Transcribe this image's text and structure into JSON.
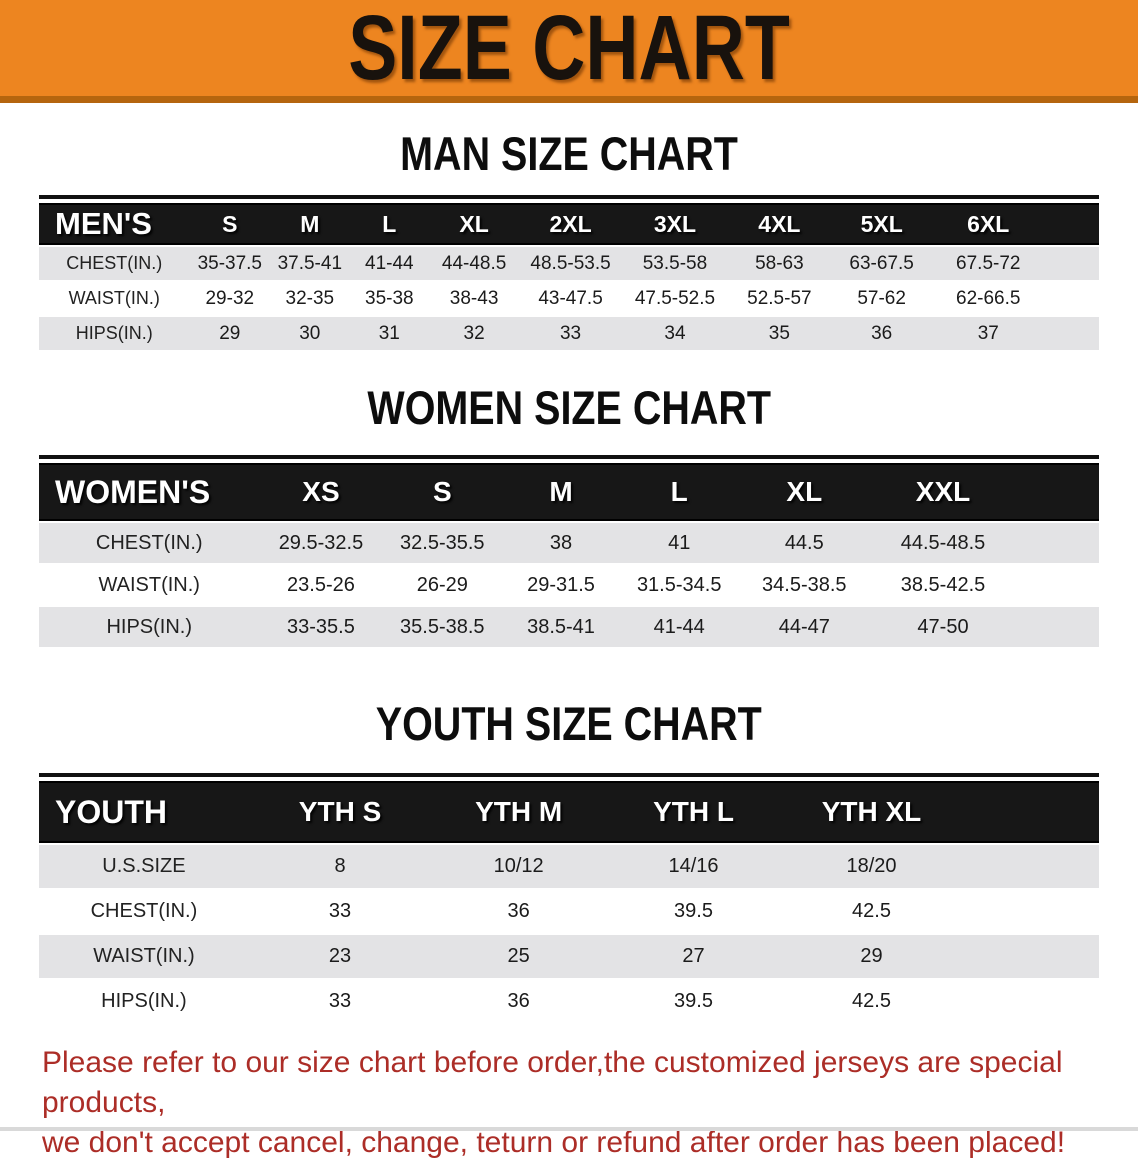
{
  "banner": {
    "title": "SIZE CHART"
  },
  "colors": {
    "banner_bg": "#ED8520",
    "banner_border": "#B5650E",
    "header_bar": "#171717",
    "row_gray": "#E3E3E5",
    "note_red": "#AC2D27"
  },
  "sections": {
    "men": {
      "heading": "MAN SIZE CHART",
      "table": {
        "label": "MEN'S",
        "columns": [
          "S",
          "M",
          "L",
          "XL",
          "2XL",
          "3XL",
          "4XL",
          "5XL",
          "6XL"
        ],
        "rows": [
          {
            "label": "CHEST(IN.)",
            "values": [
              "35-37.5",
              "37.5-41",
              "41-44",
              "44-48.5",
              "48.5-53.5",
              "53.5-58",
              "58-63",
              "63-67.5",
              "67.5-72"
            ]
          },
          {
            "label": "WAIST(IN.)",
            "values": [
              "29-32",
              "32-35",
              "35-38",
              "38-43",
              "43-47.5",
              "47.5-52.5",
              "52.5-57",
              "57-62",
              "62-66.5"
            ]
          },
          {
            "label": "HIPS(IN.)",
            "values": [
              "29",
              "30",
              "31",
              "32",
              "33",
              "34",
              "35",
              "36",
              "37"
            ]
          }
        ]
      }
    },
    "women": {
      "heading": "WOMEN SIZE CHART",
      "table": {
        "label": "WOMEN'S",
        "columns": [
          "XS",
          "S",
          "M",
          "L",
          "XL",
          "XXL"
        ],
        "rows": [
          {
            "label": "CHEST(IN.)",
            "values": [
              "29.5-32.5",
              "32.5-35.5",
              "38",
              "41",
              "44.5",
              "44.5-48.5"
            ]
          },
          {
            "label": "WAIST(IN.)",
            "values": [
              "23.5-26",
              "26-29",
              "29-31.5",
              "31.5-34.5",
              "34.5-38.5",
              "38.5-42.5"
            ]
          },
          {
            "label": "HIPS(IN.)",
            "values": [
              "33-35.5",
              "35.5-38.5",
              "38.5-41",
              "41-44",
              "44-47",
              "47-50"
            ]
          }
        ]
      }
    },
    "youth": {
      "heading": "YOUTH SIZE CHART",
      "table": {
        "label": "YOUTH",
        "columns": [
          "YTH S",
          "YTH M",
          "YTH L",
          "YTH XL"
        ],
        "rows": [
          {
            "label": "U.S.SIZE",
            "values": [
              "8",
              "10/12",
              "14/16",
              "18/20"
            ]
          },
          {
            "label": "CHEST(IN.)",
            "values": [
              "33",
              "36",
              "39.5",
              "42.5"
            ]
          },
          {
            "label": "WAIST(IN.)",
            "values": [
              "23",
              "25",
              "27",
              "29"
            ]
          },
          {
            "label": "HIPS(IN.)",
            "values": [
              "33",
              "36",
              "39.5",
              "42.5"
            ]
          }
        ]
      }
    }
  },
  "note": {
    "line1": "Please refer to our size chart before order,the customized jerseys are special products,",
    "line2": "we don't accept cancel, change, teturn or refund after order has been placed!"
  }
}
